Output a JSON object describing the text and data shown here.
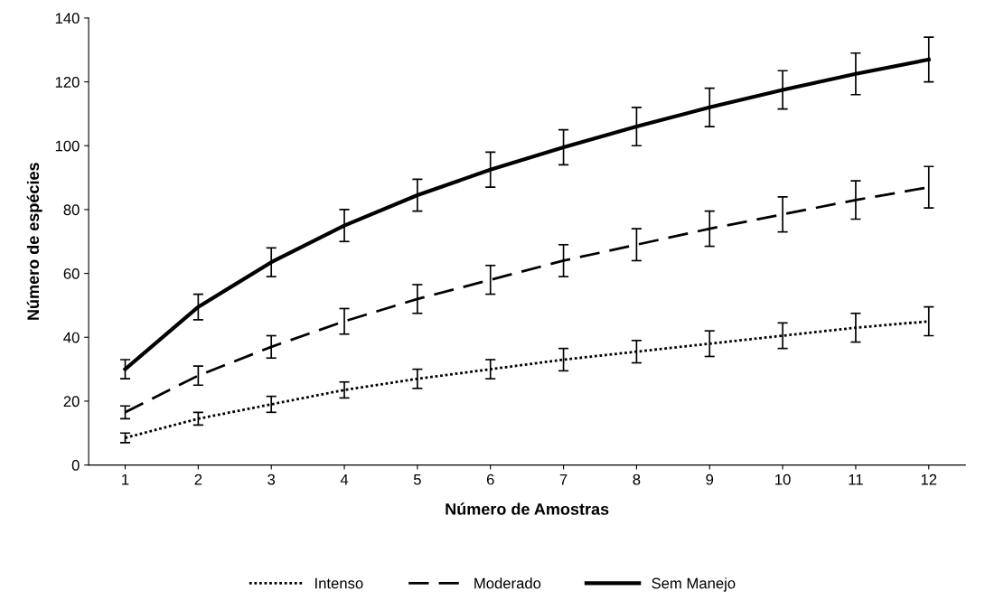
{
  "chart_data": {
    "type": "line",
    "xlabel": "Número de Amostras",
    "ylabel": "Número de espécies",
    "categories": [
      "1",
      "2",
      "3",
      "4",
      "5",
      "6",
      "7",
      "8",
      "9",
      "10",
      "11",
      "12"
    ],
    "ylim": [
      0,
      140
    ],
    "yticks": [
      0,
      20,
      40,
      60,
      80,
      100,
      120,
      140
    ],
    "grid": false,
    "legend": "bottom",
    "marker": "none",
    "series": [
      {
        "name": "Intenso",
        "color": "#000000",
        "line_style": "dotted",
        "values": [
          8.5,
          14.5,
          19,
          23.5,
          27,
          30,
          33,
          35.5,
          38,
          40.5,
          43,
          45
        ],
        "errors": [
          1.5,
          2,
          2.5,
          2.5,
          3,
          3,
          3.5,
          3.5,
          4,
          4,
          4.5,
          4.5
        ]
      },
      {
        "name": "Moderado",
        "color": "#000000",
        "line_style": "dashed",
        "values": [
          16.5,
          28,
          37,
          45,
          52,
          58,
          64,
          69,
          74,
          78.5,
          83,
          87
        ],
        "errors": [
          2,
          3,
          3.5,
          4,
          4.5,
          4.5,
          5,
          5,
          5.5,
          5.5,
          6,
          6.5
        ]
      },
      {
        "name": "Sem Manejo",
        "color": "#000000",
        "line_style": "solid",
        "values": [
          30,
          49.5,
          63.5,
          75,
          84.5,
          92.5,
          99.5,
          106,
          112,
          117.5,
          122.5,
          127
        ],
        "errors": [
          3,
          4,
          4.5,
          5,
          5,
          5.5,
          5.5,
          6,
          6,
          6,
          6.5,
          7
        ]
      }
    ]
  }
}
